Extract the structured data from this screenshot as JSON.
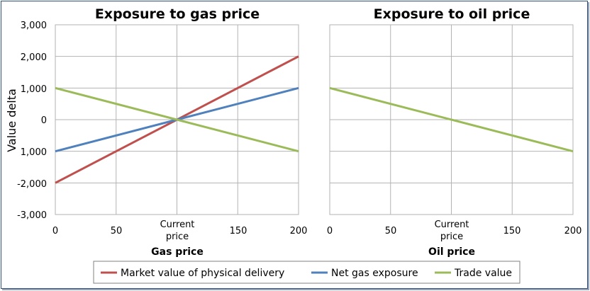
{
  "colors": {
    "market": "#c0504d",
    "net": "#4f81bd",
    "trade": "#9bbb59",
    "grid": "#b3b3b3",
    "frame": "#2f4f80"
  },
  "y_axis": {
    "label": "Value delta",
    "ticks": [
      "3,000",
      "2,000",
      "1,000",
      "0",
      "1,000",
      "-2,000",
      "-3,000"
    ]
  },
  "chart_data": [
    {
      "type": "line",
      "title": "Exposure to gas price",
      "xlabel": "Gas price",
      "ylabel": "Value delta",
      "xlim": [
        0,
        200
      ],
      "ylim": [
        -3000,
        3000
      ],
      "x_ticks": [
        "0",
        "50",
        "Current price",
        "150",
        "200"
      ],
      "series": [
        {
          "name": "Market value of physical delivery",
          "x": [
            0,
            200
          ],
          "values": [
            -2000,
            2000
          ]
        },
        {
          "name": "Net gas exposure",
          "x": [
            0,
            200
          ],
          "values": [
            -1000,
            1000
          ]
        },
        {
          "name": "Trade value",
          "x": [
            0,
            200
          ],
          "values": [
            1000,
            -1000
          ]
        }
      ]
    },
    {
      "type": "line",
      "title": "Exposure to oil price",
      "xlabel": "Oil price",
      "ylabel": "Value delta",
      "xlim": [
        0,
        200
      ],
      "ylim": [
        -3000,
        3000
      ],
      "x_ticks": [
        "0",
        "50",
        "Current price",
        "150",
        "200"
      ],
      "series": [
        {
          "name": "Trade value",
          "x": [
            0,
            200
          ],
          "values": [
            1000,
            -1000
          ]
        }
      ]
    }
  ],
  "legend": [
    {
      "label": "Market value of physical delivery",
      "color": "#c0504d"
    },
    {
      "label": "Net gas exposure",
      "color": "#4f81bd"
    },
    {
      "label": "Trade value",
      "color": "#9bbb59"
    }
  ]
}
